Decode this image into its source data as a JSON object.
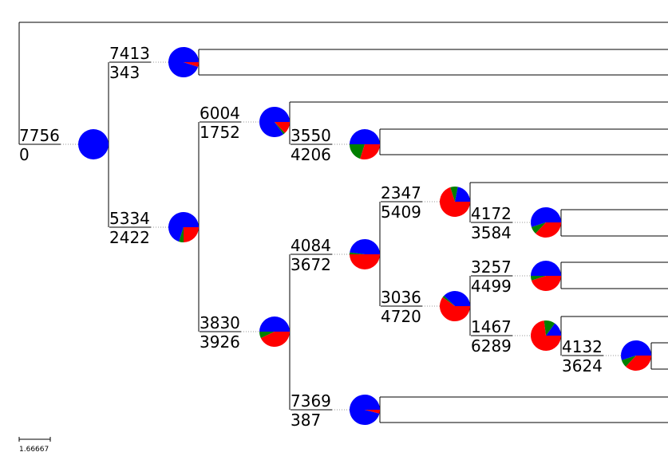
{
  "pie_colors": [
    "#0000ff",
    "#008000",
    "#ff0000"
  ],
  "nodes": [
    {
      "top": 7756,
      "bottom": 0,
      "pie": [
        100,
        0,
        0
      ]
    },
    {
      "top": 7413,
      "bottom": 343,
      "pie": [
        95,
        0,
        5
      ]
    },
    {
      "top": 5334,
      "bottom": 2422,
      "pie": [
        70,
        5,
        25
      ]
    },
    {
      "top": 6004,
      "bottom": 1752,
      "pie": [
        85,
        2,
        13
      ]
    },
    {
      "top": 3550,
      "bottom": 4206,
      "pie": [
        50,
        20,
        30
      ]
    },
    {
      "top": 3830,
      "bottom": 3926,
      "pie": [
        50,
        7,
        43
      ]
    },
    {
      "top": 4084,
      "bottom": 3672,
      "pie": [
        48,
        2,
        50
      ]
    },
    {
      "top": 2347,
      "bottom": 5409,
      "pie": [
        22,
        8,
        70
      ]
    },
    {
      "top": 4172,
      "bottom": 3584,
      "pie": [
        55,
        8,
        37
      ]
    },
    {
      "top": 3036,
      "bottom": 4720,
      "pie": [
        38,
        2,
        60
      ]
    },
    {
      "top": 3257,
      "bottom": 4499,
      "pie": [
        50,
        5,
        45
      ]
    },
    {
      "top": 1467,
      "bottom": 6289,
      "pie": [
        15,
        12,
        73
      ]
    },
    {
      "top": 4132,
      "bottom": 3624,
      "pie": [
        55,
        8,
        37
      ]
    },
    {
      "top": 7369,
      "bottom": 387,
      "pie": [
        96,
        0,
        4
      ]
    }
  ],
  "scale_label": "1.66667"
}
